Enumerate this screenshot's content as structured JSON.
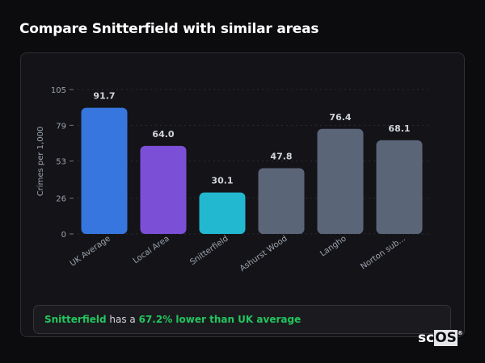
{
  "title": "Compare Snitterfield with similar areas",
  "chart_data": {
    "type": "bar",
    "ylabel": "Crimes per 1,000",
    "xlabel": "",
    "ylim": [
      0,
      105
    ],
    "yticks": [
      0,
      26,
      53,
      79,
      105
    ],
    "grid": true,
    "categories": [
      "UK Average",
      "Local Area",
      "Snitterfield",
      "Ashurst Wood",
      "Langho",
      "Norton sub..."
    ],
    "values": [
      91.7,
      64.0,
      30.1,
      47.8,
      76.4,
      68.1
    ],
    "value_labels": [
      "91.7",
      "64.0",
      "30.1",
      "47.8",
      "76.4",
      "68.1"
    ],
    "colors": [
      "#3676de",
      "#7b4fd6",
      "#22b8d0",
      "#5a6578",
      "#5a6578",
      "#5a6578"
    ]
  },
  "callout": {
    "area": "Snitterfield",
    "middle": " has a ",
    "highlight": "67.2% lower than UK average"
  },
  "logo": {
    "text": "scOS",
    "mark": "®"
  }
}
